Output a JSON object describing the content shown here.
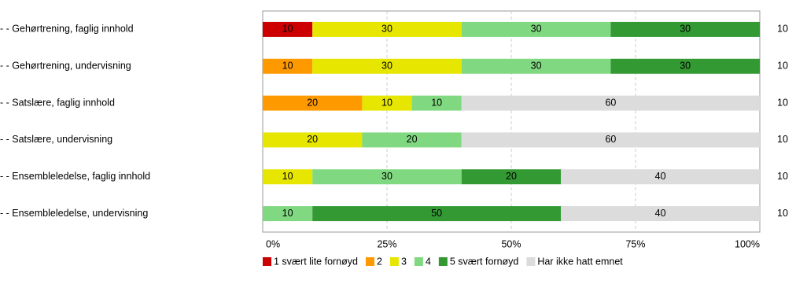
{
  "chart_data": {
    "type": "stacked-bar",
    "categories": [
      "- - Gehørtrening, faglig innhold",
      "- - Gehørtrening, undervisning",
      "- - Satslære, faglig innhold",
      "- - Satslære, undervisning",
      "- - Ensembleledelse, faglig innhold",
      "- - Ensembleledelse, undervisning"
    ],
    "series": [
      {
        "name": "1 svært lite fornøyd",
        "color": "#cc0000",
        "values": [
          10,
          null,
          null,
          null,
          null,
          null
        ]
      },
      {
        "name": "2",
        "color": "#ff9900",
        "values": [
          null,
          10,
          20,
          null,
          null,
          null
        ]
      },
      {
        "name": "3",
        "color": "#e6e600",
        "values": [
          30,
          30,
          10,
          20,
          10,
          null
        ]
      },
      {
        "name": "4",
        "color": "#80d980",
        "values": [
          30,
          30,
          10,
          20,
          30,
          10
        ]
      },
      {
        "name": "5 svært fornøyd",
        "color": "#339933",
        "values": [
          30,
          30,
          null,
          null,
          20,
          50
        ]
      },
      {
        "name": "Har ikke hatt emnet",
        "color": "#dcdcdc",
        "values": [
          null,
          null,
          60,
          60,
          40,
          40
        ]
      }
    ],
    "n": [
      10,
      10,
      10,
      10,
      10,
      10
    ],
    "xlim": [
      0,
      100
    ],
    "xticks": [
      {
        "value": 0,
        "label": "0%"
      },
      {
        "value": 25,
        "label": "25%"
      },
      {
        "value": 50,
        "label": "50%"
      },
      {
        "value": 75,
        "label": "75%"
      },
      {
        "value": 100,
        "label": "100%"
      }
    ],
    "grid": true
  }
}
